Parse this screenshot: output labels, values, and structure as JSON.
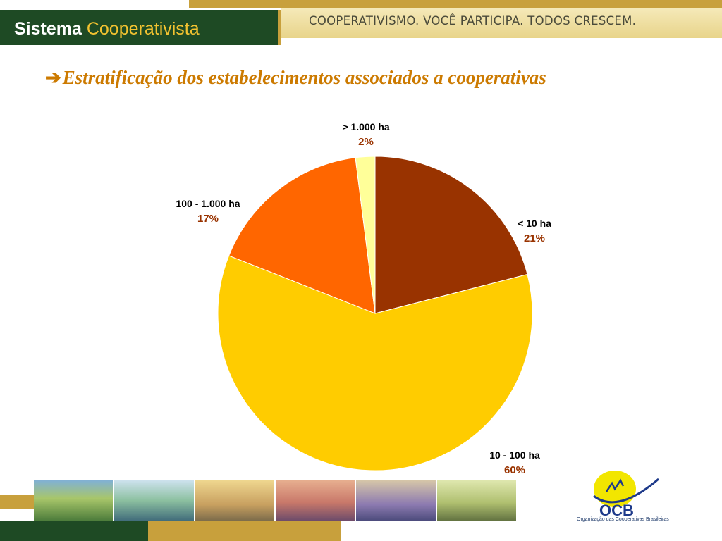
{
  "header": {
    "brand_bold": "Sistema",
    "brand_light": "Cooperativista",
    "tagline": "COOPERATIVISMO. VOCÊ PARTICIPA. TODOS CRESCEM."
  },
  "title": {
    "arrow": "➔",
    "text": "Estratificação dos estabelecimentos associados a cooperativas"
  },
  "chart_data": {
    "type": "pie",
    "title": "Estratificação dos estabelecimentos associados a cooperativas",
    "categories": [
      "< 10 ha",
      "10 - 100 ha",
      "100 - 1.000 ha",
      "> 1.000 ha"
    ],
    "values": [
      21,
      60,
      17,
      2
    ],
    "labels": [
      "21%",
      "60%",
      "17%",
      "2%"
    ],
    "colors": [
      "#993300",
      "#ffcc00",
      "#ff6600",
      "#ffff99"
    ],
    "start": "12 o'clock, clockwise",
    "legend": "none"
  },
  "footer": {
    "logo_text": "OCB",
    "logo_subtitle": "Organização das Cooperativas Brasileiras"
  }
}
